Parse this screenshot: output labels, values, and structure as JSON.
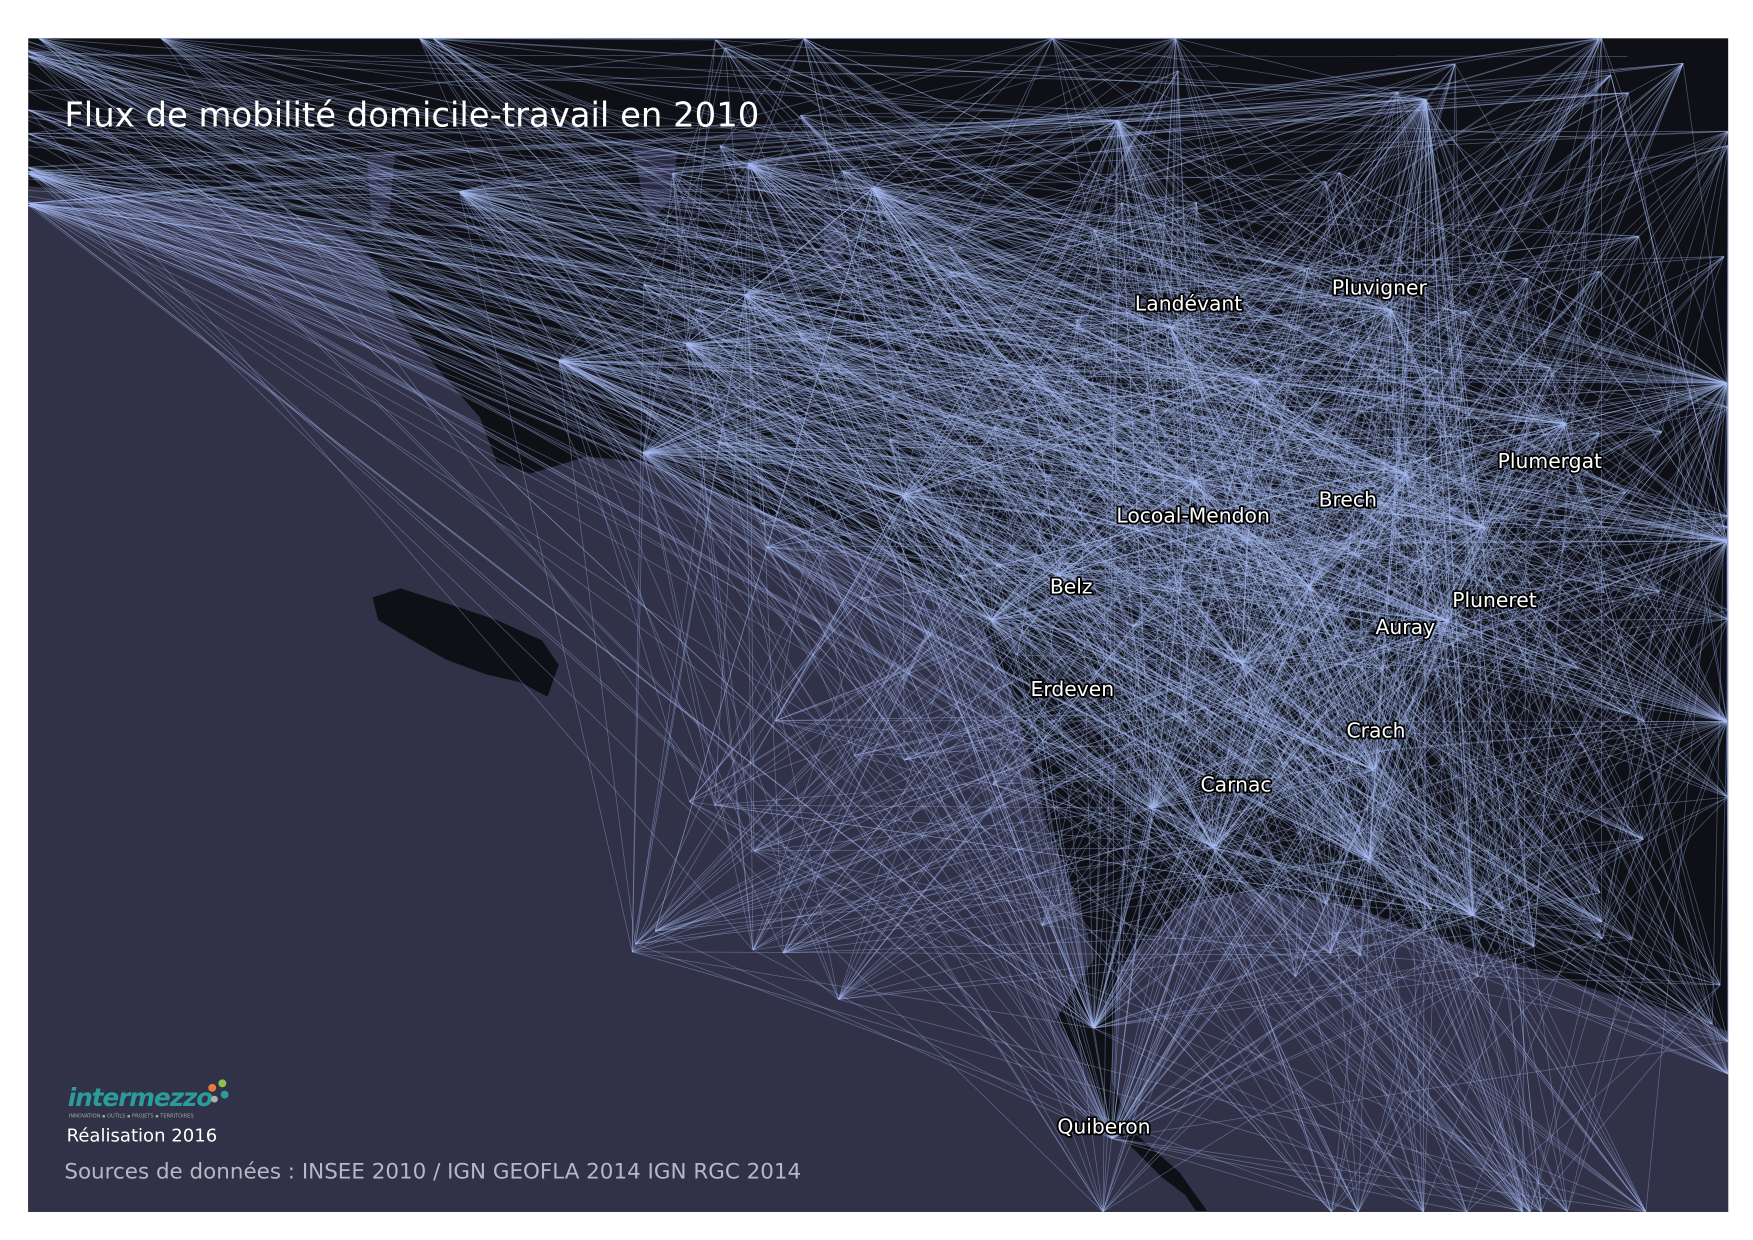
{
  "title": "Flux de mobilité domicile-travail en 2010",
  "places": [
    "Landévant",
    "Pluvigner",
    "Plumergat",
    "Brech",
    "Locoal-Mendon",
    "Belz",
    "Pluneret",
    "Auray",
    "Erdeven",
    "Crach",
    "Carnac",
    "Quiberon"
  ],
  "logo": {
    "name": "intermezzo",
    "tagline": "INNOVATION ▪ OUTILS ▪ PROJETS ▪ TERRITOIRES"
  },
  "credit": "Réalisation 2016",
  "sources": "Sources de données : INSEE 2010 / IGN GEOFLA 2014 IGN RGC 2014"
}
